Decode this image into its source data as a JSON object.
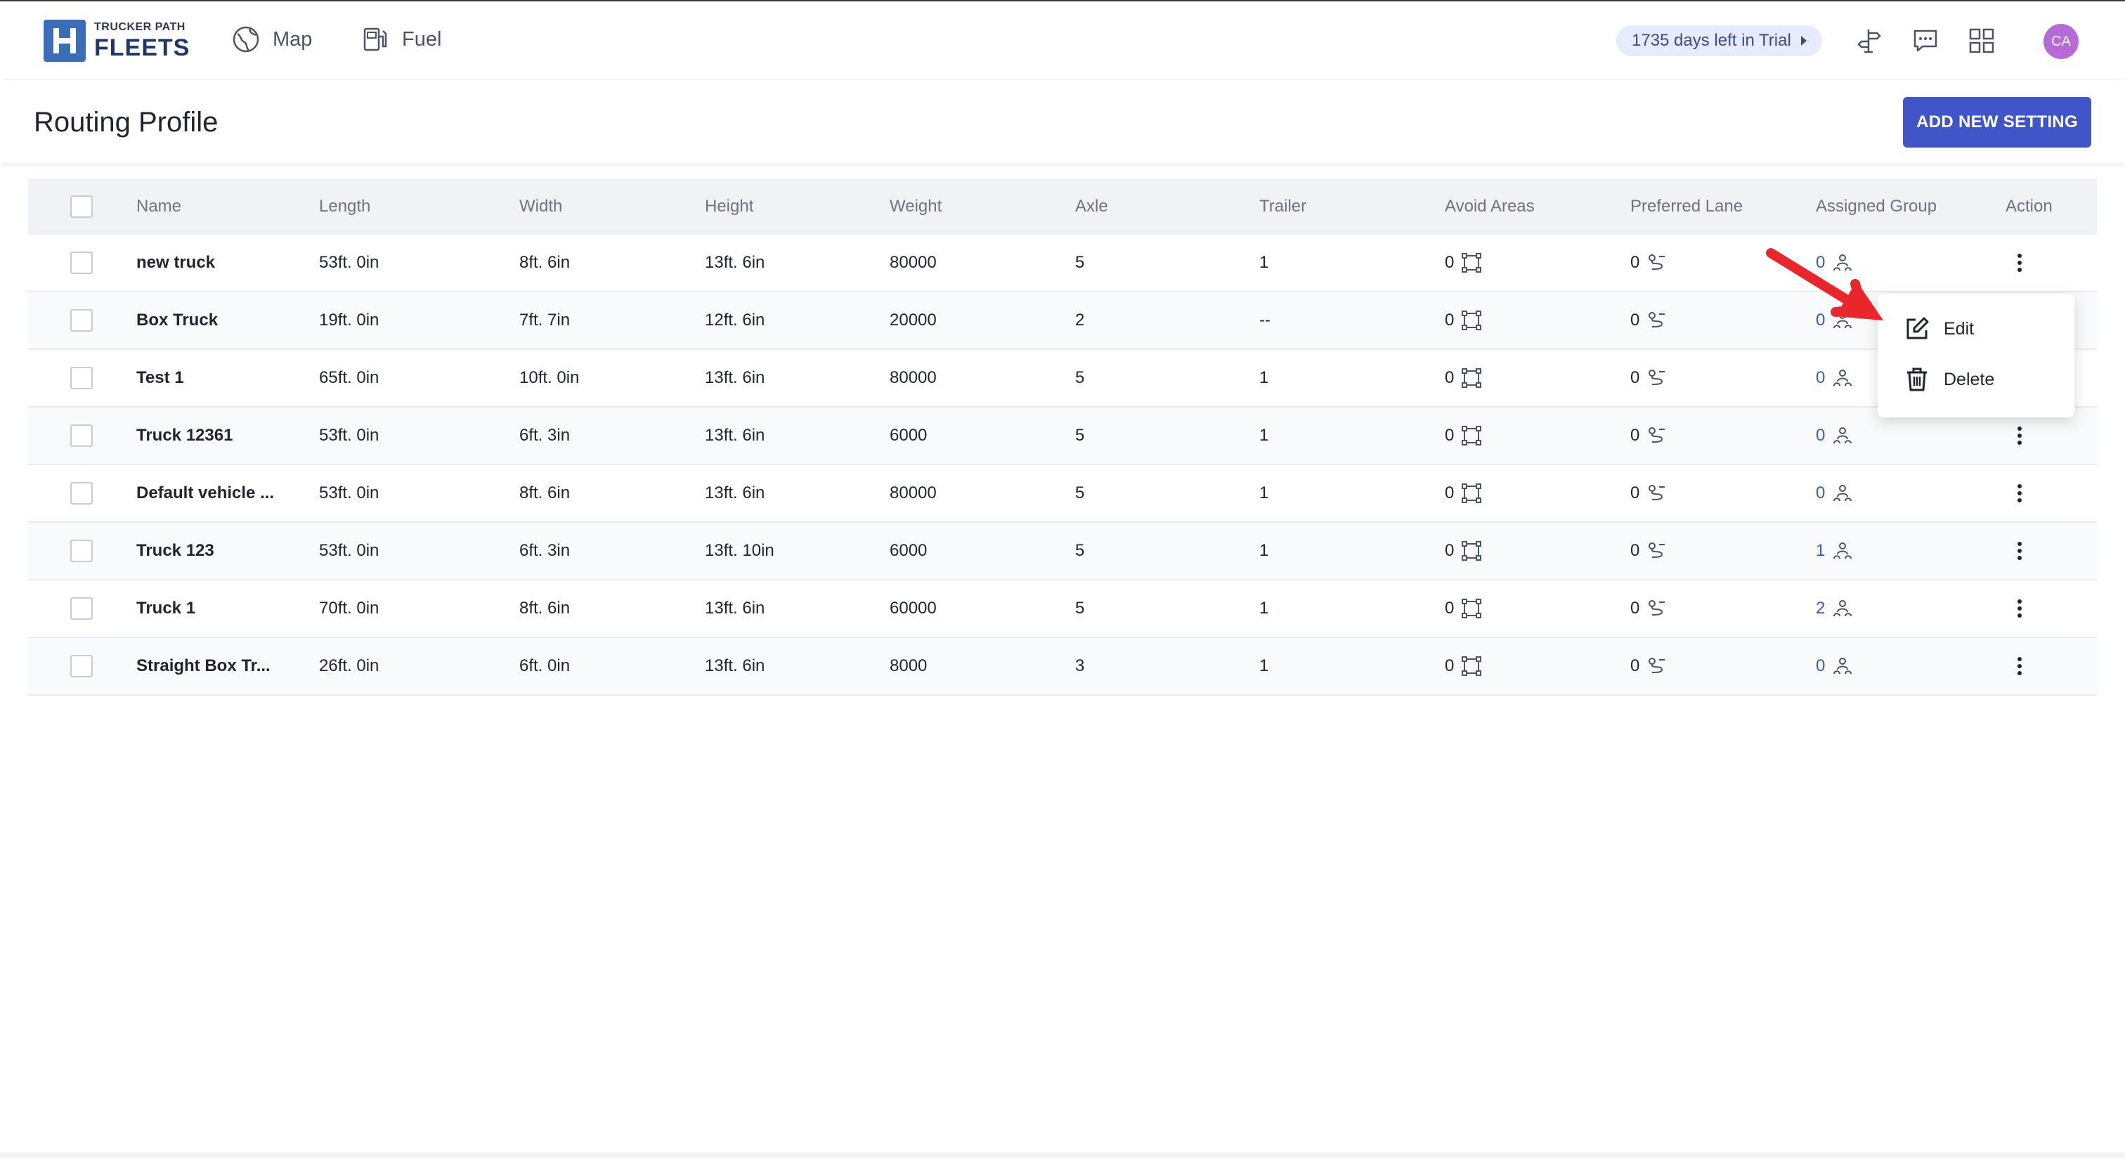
{
  "topbar": {
    "logo_small": "TRUCKER PATH",
    "logo_big": "FLEETS",
    "nav": [
      {
        "label": "Map",
        "icon": "globe-icon"
      },
      {
        "label": "Fuel",
        "icon": "fuel-pump-icon"
      }
    ],
    "trial_label": "1735 days left in Trial",
    "icons": [
      "signpost-icon",
      "message-icon",
      "apps-grid-icon"
    ],
    "avatar_initials": "CA"
  },
  "page": {
    "title": "Routing Profile",
    "add_button": "ADD NEW SETTING"
  },
  "table": {
    "columns": [
      "Name",
      "Length",
      "Width",
      "Height",
      "Weight",
      "Axle",
      "Trailer",
      "Avoid Areas",
      "Preferred Lane",
      "Assigned Group",
      "Action"
    ],
    "rows": [
      {
        "name": "new truck",
        "length": "53ft. 0in",
        "width": "8ft. 6in",
        "height": "13ft. 6in",
        "weight": "80000",
        "axle": "5",
        "trailer": "1",
        "avoid": "0",
        "pref": "0",
        "group": "0"
      },
      {
        "name": "Box Truck",
        "length": "19ft. 0in",
        "width": "7ft. 7in",
        "height": "12ft. 6in",
        "weight": "20000",
        "axle": "2",
        "trailer": "--",
        "avoid": "0",
        "pref": "0",
        "group": "0"
      },
      {
        "name": "Test 1",
        "length": "65ft. 0in",
        "width": "10ft. 0in",
        "height": "13ft. 6in",
        "weight": "80000",
        "axle": "5",
        "trailer": "1",
        "avoid": "0",
        "pref": "0",
        "group": "0"
      },
      {
        "name": "Truck 12361",
        "length": "53ft. 0in",
        "width": "6ft. 3in",
        "height": "13ft. 6in",
        "weight": "6000",
        "axle": "5",
        "trailer": "1",
        "avoid": "0",
        "pref": "0",
        "group": "0"
      },
      {
        "name": "Default vehicle ...",
        "length": "53ft. 0in",
        "width": "8ft. 6in",
        "height": "13ft. 6in",
        "weight": "80000",
        "axle": "5",
        "trailer": "1",
        "avoid": "0",
        "pref": "0",
        "group": "0"
      },
      {
        "name": "Truck 123",
        "length": "53ft. 0in",
        "width": "6ft. 3in",
        "height": "13ft. 10in",
        "weight": "6000",
        "axle": "5",
        "trailer": "1",
        "avoid": "0",
        "pref": "0",
        "group": "1"
      },
      {
        "name": "Truck 1",
        "length": "70ft. 0in",
        "width": "8ft. 6in",
        "height": "13ft. 6in",
        "weight": "60000",
        "axle": "5",
        "trailer": "1",
        "avoid": "0",
        "pref": "0",
        "group": "2"
      },
      {
        "name": "Straight Box Tr...",
        "length": "26ft. 0in",
        "width": "6ft. 0in",
        "height": "13ft. 6in",
        "weight": "8000",
        "axle": "3",
        "trailer": "1",
        "avoid": "0",
        "pref": "0",
        "group": "0"
      }
    ]
  },
  "action_menu": {
    "edit_label": "Edit",
    "delete_label": "Delete"
  },
  "colors": {
    "primary": "#3f55c8",
    "link": "#3a5bbd",
    "annotation_arrow": "#e8262b"
  }
}
